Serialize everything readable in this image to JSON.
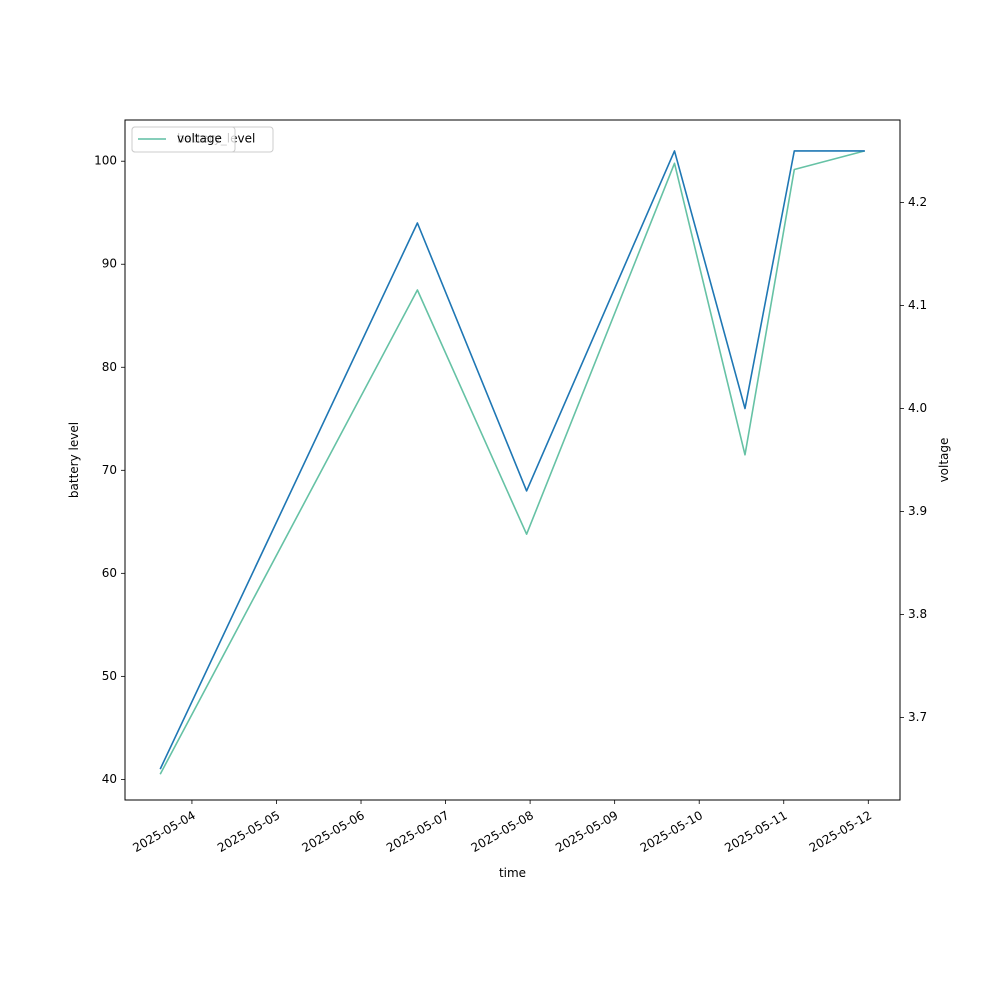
{
  "chart_data": {
    "type": "line",
    "xlabel": "time",
    "ylabel_left": "battery level",
    "ylabel_right": "voltage",
    "x_ticks": [
      "2025-05-04",
      "2025-05-05",
      "2025-05-06",
      "2025-05-07",
      "2025-05-08",
      "2025-05-09",
      "2025-05-10",
      "2025-05-11",
      "2025-05-12"
    ],
    "y_left_ticks": [
      40,
      50,
      60,
      70,
      80,
      90,
      100
    ],
    "y_left_lim": [
      38,
      104
    ],
    "y_right_ticks": [
      3.7,
      3.8,
      3.9,
      4.0,
      4.1,
      4.2
    ],
    "y_right_lim": [
      3.62,
      4.28
    ],
    "legend_location": "upper-left",
    "legends": [
      {
        "label": "battery_level",
        "series": "battery_level"
      },
      {
        "label": "voltage",
        "series": "voltage"
      }
    ],
    "series": [
      {
        "name": "battery_level",
        "axis": "left",
        "color": "#1f77b4",
        "points": [
          {
            "x": "2025-05-03 15:00",
            "y": 41
          },
          {
            "x": "2025-05-06 16:00",
            "y": 94
          },
          {
            "x": "2025-05-07 23:00",
            "y": 68
          },
          {
            "x": "2025-05-09 17:00",
            "y": 101
          },
          {
            "x": "2025-05-10 13:00",
            "y": 76
          },
          {
            "x": "2025-05-11 03:00",
            "y": 101
          },
          {
            "x": "2025-05-11 23:00",
            "y": 101
          }
        ]
      },
      {
        "name": "voltage",
        "axis": "right",
        "color": "#66c2a5",
        "points": [
          {
            "x": "2025-05-03 15:00",
            "y": 3.645
          },
          {
            "x": "2025-05-06 16:00",
            "y": 4.115
          },
          {
            "x": "2025-05-07 23:00",
            "y": 3.878
          },
          {
            "x": "2025-05-09 17:00",
            "y": 4.238
          },
          {
            "x": "2025-05-10 13:00",
            "y": 3.955
          },
          {
            "x": "2025-05-11 03:00",
            "y": 4.232
          },
          {
            "x": "2025-05-11 23:00",
            "y": 4.25
          }
        ]
      }
    ]
  }
}
